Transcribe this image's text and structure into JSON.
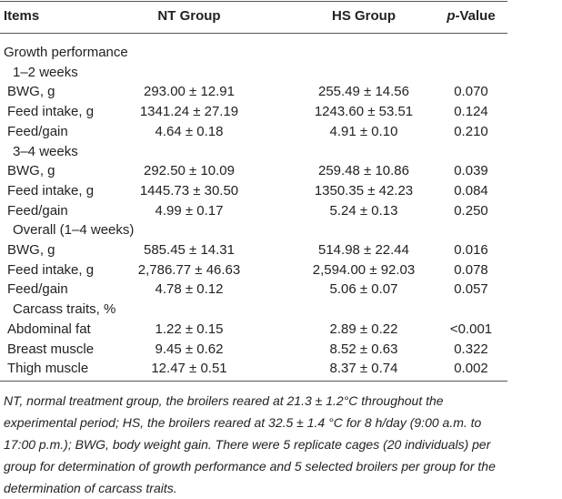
{
  "header": {
    "columns": [
      {
        "text": "Items"
      },
      {
        "text": "NT Group"
      },
      {
        "text": "HS Group"
      },
      {
        "italic": "p",
        "text": "-Value"
      }
    ]
  },
  "table": {
    "rows": [
      [
        "Growth performance"
      ],
      [
        "1–2 weeks"
      ],
      [
        "BWG, g",
        "293.00 ± 12.91",
        "255.49 ± 14.56",
        "0.070"
      ],
      [
        "Feed intake, g",
        "1341.24 ± 27.19",
        "1243.60 ± 53.51",
        "0.124"
      ],
      [
        "Feed/gain",
        "4.64 ± 0.18",
        "4.91 ± 0.10",
        "0.210"
      ],
      [
        "3–4 weeks"
      ],
      [
        "BWG, g",
        "292.50 ± 10.09",
        "259.48 ± 10.86",
        "0.039"
      ],
      [
        "Feed intake, g",
        "1445.73 ± 30.50",
        "1350.35 ± 42.23",
        "0.084"
      ],
      [
        "Feed/gain",
        "4.99 ± 0.17",
        "5.24 ± 0.13",
        "0.250"
      ],
      [
        "Overall (1–4 weeks)"
      ],
      [
        "BWG, g",
        "585.45 ± 14.31",
        "514.98 ± 22.44",
        "0.016"
      ],
      [
        "Feed intake, g",
        "2,786.77 ± 46.63",
        "2,594.00 ± 92.03",
        "0.078"
      ],
      [
        "Feed/gain",
        "4.78 ± 0.12",
        "5.06 ± 0.07",
        "0.057"
      ],
      [
        "Carcass traits, %"
      ],
      [
        "Abdominal fat",
        "1.22 ± 0.15",
        "2.89 ± 0.22",
        "<0.001"
      ],
      [
        "Breast muscle",
        "9.45 ± 0.62",
        "8.52 ± 0.63",
        "0.322"
      ],
      [
        "Thigh muscle",
        "12.47 ± 0.51",
        "8.37 ± 0.74",
        "0.002"
      ]
    ]
  },
  "footnote": "NT, normal treatment group, the broilers reared at 21.3 ± 1.2°C throughout the experimental period; HS, the broilers reared at 32.5 ± 1.4 °C for 8 h/day (9:00 a.m. to 17:00 p.m.); BWG, body weight gain. There were 5 replicate cages (20 individuals) per group for determination of growth performance and 5 selected broilers per group for the determination of carcass traits."
}
